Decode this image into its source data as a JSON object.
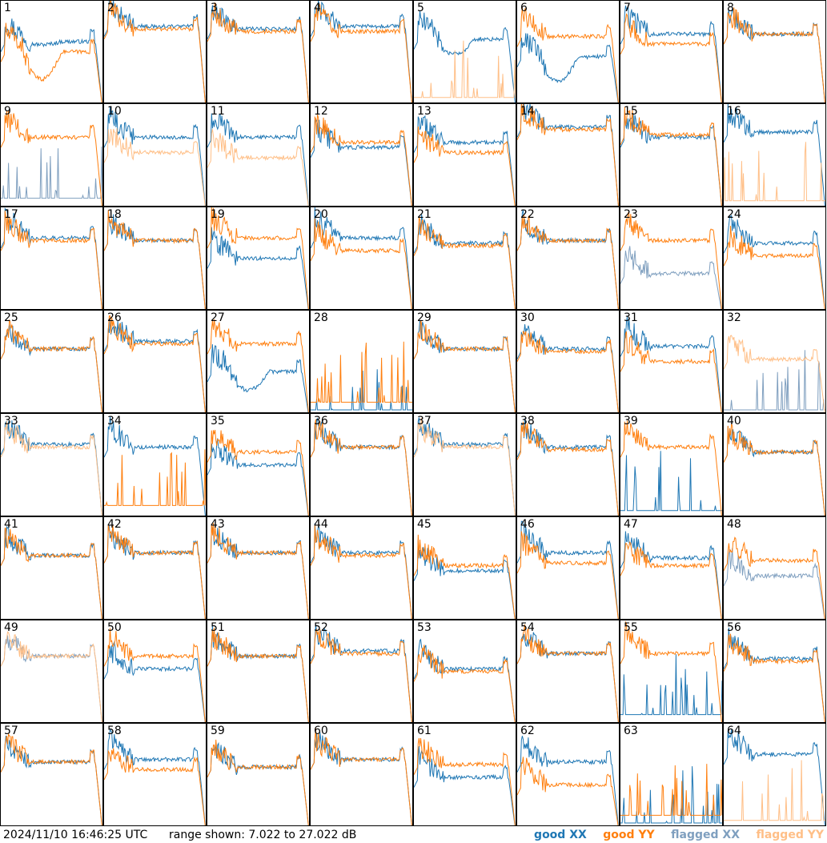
{
  "chart_data": {
    "type": "line",
    "timestamp": "2024/11/10 16:46:25 UTC",
    "range_label": "range shown: 7.022 to 27.022 dB",
    "ylim": [
      7.022,
      27.022
    ],
    "legend": [
      {
        "label": "good XX",
        "color": "#1f77b4"
      },
      {
        "label": "good YY",
        "color": "#ff7f0e"
      },
      {
        "label": "flagged XX",
        "color": "#7f9fbf"
      },
      {
        "label": "flagged YY",
        "color": "#ffbf87"
      }
    ],
    "colors": {
      "good_xx": "#1f77b4",
      "good_yy": "#ff7f0e",
      "flagged_xx": "#7f9fbf",
      "flagged_yy": "#ffbf87"
    },
    "panels": [
      {
        "id": "1",
        "xx": {
          "state": "good",
          "level": 19,
          "low_dip": 0.1
        },
        "yy": {
          "state": "good",
          "level": 17,
          "low_dip": 0.9
        }
      },
      {
        "id": "2",
        "xx": {
          "state": "good",
          "level": 22
        },
        "yy": {
          "state": "good",
          "level": 21.5
        }
      },
      {
        "id": "3",
        "xx": {
          "state": "good",
          "level": 21.5
        },
        "yy": {
          "state": "good",
          "level": 21
        }
      },
      {
        "id": "4",
        "xx": {
          "state": "good",
          "level": 22
        },
        "yy": {
          "state": "good",
          "level": 21
        }
      },
      {
        "id": "5",
        "xx": {
          "state": "good",
          "level": 19.5,
          "low_dip": 0.5
        },
        "yy": {
          "state": "flagged",
          "level": 8
        }
      },
      {
        "id": "6",
        "xx": {
          "state": "good",
          "level": 16,
          "low_dip": 0.8
        },
        "yy": {
          "state": "good",
          "level": 20
        }
      },
      {
        "id": "7",
        "xx": {
          "state": "good",
          "level": 20.5
        },
        "yy": {
          "state": "good",
          "level": 18.5
        }
      },
      {
        "id": "8",
        "xx": {
          "state": "good",
          "level": 20.5
        },
        "yy": {
          "state": "good",
          "level": 20.5
        }
      },
      {
        "id": "9",
        "xx": {
          "state": "flagged",
          "level": 8.5
        },
        "yy": {
          "state": "good",
          "level": 20.5
        }
      },
      {
        "id": "10",
        "xx": {
          "state": "good",
          "level": 20.5
        },
        "yy": {
          "state": "flagged",
          "level": 17.5
        }
      },
      {
        "id": "11",
        "xx": {
          "state": "good",
          "level": 20.5
        },
        "yy": {
          "state": "flagged",
          "level": 16.5
        }
      },
      {
        "id": "12",
        "xx": {
          "state": "good",
          "level": 18.5
        },
        "yy": {
          "state": "good",
          "level": 19.5
        }
      },
      {
        "id": "13",
        "xx": {
          "state": "good",
          "level": 19.5
        },
        "yy": {
          "state": "good",
          "level": 17.5
        }
      },
      {
        "id": "14",
        "xx": {
          "state": "good",
          "level": 22.5
        },
        "yy": {
          "state": "good",
          "level": 22
        }
      },
      {
        "id": "15",
        "xx": {
          "state": "good",
          "level": 20.5
        },
        "yy": {
          "state": "good",
          "level": 21
        }
      },
      {
        "id": "16",
        "xx": {
          "state": "good",
          "level": 21.5
        },
        "yy": {
          "state": "flagged",
          "level": 8
        }
      },
      {
        "id": "17",
        "xx": {
          "state": "good",
          "level": 21
        },
        "yy": {
          "state": "good",
          "level": 20.5
        }
      },
      {
        "id": "18",
        "xx": {
          "state": "good",
          "level": 20.5
        },
        "yy": {
          "state": "good",
          "level": 20.5
        }
      },
      {
        "id": "19",
        "xx": {
          "state": "good",
          "level": 17
        },
        "yy": {
          "state": "good",
          "level": 21
        }
      },
      {
        "id": "20",
        "xx": {
          "state": "good",
          "level": 21
        },
        "yy": {
          "state": "good",
          "level": 18.5
        }
      },
      {
        "id": "21",
        "xx": {
          "state": "good",
          "level": 20
        },
        "yy": {
          "state": "good",
          "level": 19.5
        }
      },
      {
        "id": "22",
        "xx": {
          "state": "good",
          "level": 20.5
        },
        "yy": {
          "state": "good",
          "level": 20.5
        }
      },
      {
        "id": "23",
        "xx": {
          "state": "flagged",
          "level": 14
        },
        "yy": {
          "state": "good",
          "level": 20.5
        }
      },
      {
        "id": "24",
        "xx": {
          "state": "good",
          "level": 20
        },
        "yy": {
          "state": "good",
          "level": 17.5
        }
      },
      {
        "id": "25",
        "xx": {
          "state": "good",
          "level": 19.5
        },
        "yy": {
          "state": "good",
          "level": 19.5
        }
      },
      {
        "id": "26",
        "xx": {
          "state": "good",
          "level": 21
        },
        "yy": {
          "state": "good",
          "level": 20.5
        }
      },
      {
        "id": "27",
        "xx": {
          "state": "good",
          "level": 15,
          "low_dip": 0.6
        },
        "yy": {
          "state": "good",
          "level": 20.5
        }
      },
      {
        "id": "28",
        "xx": {
          "state": "good",
          "level": 7.5
        },
        "yy": {
          "state": "good",
          "level": 9
        }
      },
      {
        "id": "29",
        "xx": {
          "state": "good",
          "level": 19.5
        },
        "yy": {
          "state": "good",
          "level": 19.5
        }
      },
      {
        "id": "30",
        "xx": {
          "state": "good",
          "level": 19.5
        },
        "yy": {
          "state": "good",
          "level": 19
        }
      },
      {
        "id": "31",
        "xx": {
          "state": "good",
          "level": 20
        },
        "yy": {
          "state": "good",
          "level": 17
        }
      },
      {
        "id": "32",
        "xx": {
          "state": "flagged",
          "level": 7.5
        },
        "yy": {
          "state": "flagged",
          "level": 17.5
        }
      },
      {
        "id": "33",
        "xx": {
          "state": "good",
          "level": 21
        },
        "yy": {
          "state": "flagged",
          "level": 20.5
        }
      },
      {
        "id": "34",
        "xx": {
          "state": "good",
          "level": 20.5
        },
        "yy": {
          "state": "good",
          "level": 9
        }
      },
      {
        "id": "35",
        "xx": {
          "state": "good",
          "level": 17
        },
        "yy": {
          "state": "good",
          "level": 19.5
        }
      },
      {
        "id": "36",
        "xx": {
          "state": "good",
          "level": 20.5
        },
        "yy": {
          "state": "good",
          "level": 20.5
        }
      },
      {
        "id": "37",
        "xx": {
          "state": "good",
          "level": 21
        },
        "yy": {
          "state": "flagged",
          "level": 20.5
        }
      },
      {
        "id": "38",
        "xx": {
          "state": "good",
          "level": 20.5
        },
        "yy": {
          "state": "good",
          "level": 20
        }
      },
      {
        "id": "39",
        "xx": {
          "state": "good",
          "level": 8
        },
        "yy": {
          "state": "good",
          "level": 20.5
        }
      },
      {
        "id": "40",
        "xx": {
          "state": "good",
          "level": 19.5
        },
        "yy": {
          "state": "good",
          "level": 19.5
        }
      },
      {
        "id": "41",
        "xx": {
          "state": "good",
          "level": 19.5
        },
        "yy": {
          "state": "good",
          "level": 19.5
        }
      },
      {
        "id": "42",
        "xx": {
          "state": "good",
          "level": 20
        },
        "yy": {
          "state": "good",
          "level": 20
        }
      },
      {
        "id": "43",
        "xx": {
          "state": "good",
          "level": 20
        },
        "yy": {
          "state": "good",
          "level": 20
        }
      },
      {
        "id": "44",
        "xx": {
          "state": "good",
          "level": 20
        },
        "yy": {
          "state": "good",
          "level": 19.5
        }
      },
      {
        "id": "45",
        "xx": {
          "state": "good",
          "level": 16.5
        },
        "yy": {
          "state": "good",
          "level": 17.5
        }
      },
      {
        "id": "46",
        "xx": {
          "state": "good",
          "level": 20
        },
        "yy": {
          "state": "good",
          "level": 18
        }
      },
      {
        "id": "47",
        "xx": {
          "state": "good",
          "level": 19
        },
        "yy": {
          "state": "good",
          "level": 17.5
        }
      },
      {
        "id": "48",
        "xx": {
          "state": "flagged",
          "level": 15.5
        },
        "yy": {
          "state": "good",
          "level": 18.5
        }
      },
      {
        "id": "49",
        "xx": {
          "state": "flagged",
          "level": 20
        },
        "yy": {
          "state": "flagged",
          "level": 20
        }
      },
      {
        "id": "50",
        "xx": {
          "state": "good",
          "level": 17.5
        },
        "yy": {
          "state": "good",
          "level": 20
        }
      },
      {
        "id": "51",
        "xx": {
          "state": "good",
          "level": 20
        },
        "yy": {
          "state": "good",
          "level": 20
        }
      },
      {
        "id": "52",
        "xx": {
          "state": "good",
          "level": 21
        },
        "yy": {
          "state": "good",
          "level": 20.5
        }
      },
      {
        "id": "53",
        "xx": {
          "state": "good",
          "level": 17.5
        },
        "yy": {
          "state": "good",
          "level": 17
        }
      },
      {
        "id": "54",
        "xx": {
          "state": "good",
          "level": 20.5
        },
        "yy": {
          "state": "good",
          "level": 20.5
        }
      },
      {
        "id": "55",
        "xx": {
          "state": "good",
          "level": 8.5
        },
        "yy": {
          "state": "good",
          "level": 20.5
        }
      },
      {
        "id": "56",
        "xx": {
          "state": "good",
          "level": 19.5
        },
        "yy": {
          "state": "good",
          "level": 19
        }
      },
      {
        "id": "57",
        "xx": {
          "state": "good",
          "level": 19.5
        },
        "yy": {
          "state": "good",
          "level": 19.5
        }
      },
      {
        "id": "58",
        "xx": {
          "state": "good",
          "level": 20
        },
        "yy": {
          "state": "good",
          "level": 18
        }
      },
      {
        "id": "59",
        "xx": {
          "state": "good",
          "level": 18.5
        },
        "yy": {
          "state": "good",
          "level": 18.5
        }
      },
      {
        "id": "60",
        "xx": {
          "state": "good",
          "level": 20
        },
        "yy": {
          "state": "good",
          "level": 20
        }
      },
      {
        "id": "61",
        "xx": {
          "state": "good",
          "level": 16.5
        },
        "yy": {
          "state": "good",
          "level": 19
        }
      },
      {
        "id": "62",
        "xx": {
          "state": "good",
          "level": 19.5
        },
        "yy": {
          "state": "good",
          "level": 15
        }
      },
      {
        "id": "63",
        "xx": {
          "state": "good",
          "level": 7.5
        },
        "yy": {
          "state": "good",
          "level": 9
        }
      },
      {
        "id": "64",
        "xx": {
          "state": "good",
          "level": 21
        },
        "yy": {
          "state": "flagged",
          "level": 8
        }
      }
    ]
  }
}
